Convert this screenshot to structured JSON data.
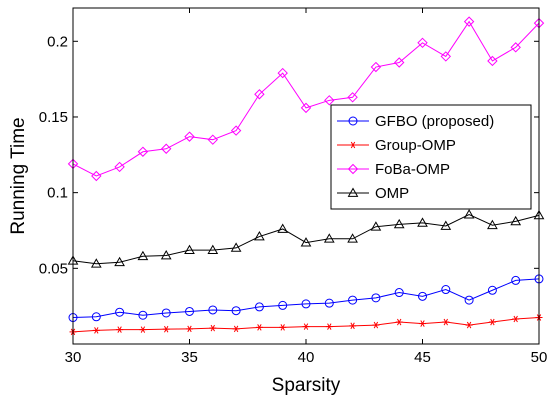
{
  "chart_data": {
    "type": "line",
    "title": "",
    "xlabel": "Sparsity",
    "ylabel": "Running Time",
    "xlim": [
      30,
      50
    ],
    "ylim": [
      0,
      0.222
    ],
    "xticks": [
      30,
      35,
      40,
      45,
      50
    ],
    "yticks": [
      0.05,
      0.1,
      0.15,
      0.2
    ],
    "xtick_labels": [
      "30",
      "35",
      "40",
      "45",
      "50"
    ],
    "ytick_labels": [
      "0.05",
      "0.1",
      "0.15",
      "0.2"
    ],
    "grid": false,
    "legend_position": "right",
    "x": [
      30,
      31,
      32,
      33,
      34,
      35,
      36,
      37,
      38,
      39,
      40,
      41,
      42,
      43,
      44,
      45,
      46,
      47,
      48,
      49,
      50
    ],
    "series": [
      {
        "name": "GFBO (proposed)",
        "color": "#0000ff",
        "marker": "circle",
        "values": [
          0.0175,
          0.018,
          0.021,
          0.019,
          0.0205,
          0.0215,
          0.0225,
          0.022,
          0.0245,
          0.0255,
          0.0265,
          0.027,
          0.029,
          0.0305,
          0.034,
          0.0315,
          0.036,
          0.029,
          0.0355,
          0.042,
          0.043
        ]
      },
      {
        "name": "Group-OMP",
        "color": "#ff0000",
        "marker": "star",
        "values": [
          0.008,
          0.009,
          0.0095,
          0.0095,
          0.0098,
          0.01,
          0.0105,
          0.01,
          0.011,
          0.011,
          0.0115,
          0.0115,
          0.012,
          0.0125,
          0.0145,
          0.0135,
          0.0145,
          0.0125,
          0.0145,
          0.0165,
          0.0175
        ]
      },
      {
        "name": "FoBa-OMP",
        "color": "#ff00ff",
        "marker": "diamond",
        "values": [
          0.119,
          0.111,
          0.117,
          0.127,
          0.129,
          0.137,
          0.135,
          0.141,
          0.165,
          0.179,
          0.156,
          0.161,
          0.163,
          0.183,
          0.186,
          0.199,
          0.19,
          0.213,
          0.187,
          0.196,
          0.212
        ]
      },
      {
        "name": "OMP",
        "color": "#000000",
        "marker": "triangle",
        "values": [
          0.055,
          0.053,
          0.054,
          0.058,
          0.0585,
          0.062,
          0.062,
          0.0635,
          0.071,
          0.076,
          0.067,
          0.0695,
          0.0695,
          0.0775,
          0.079,
          0.08,
          0.078,
          0.0855,
          0.0785,
          0.081,
          0.085
        ]
      }
    ]
  }
}
